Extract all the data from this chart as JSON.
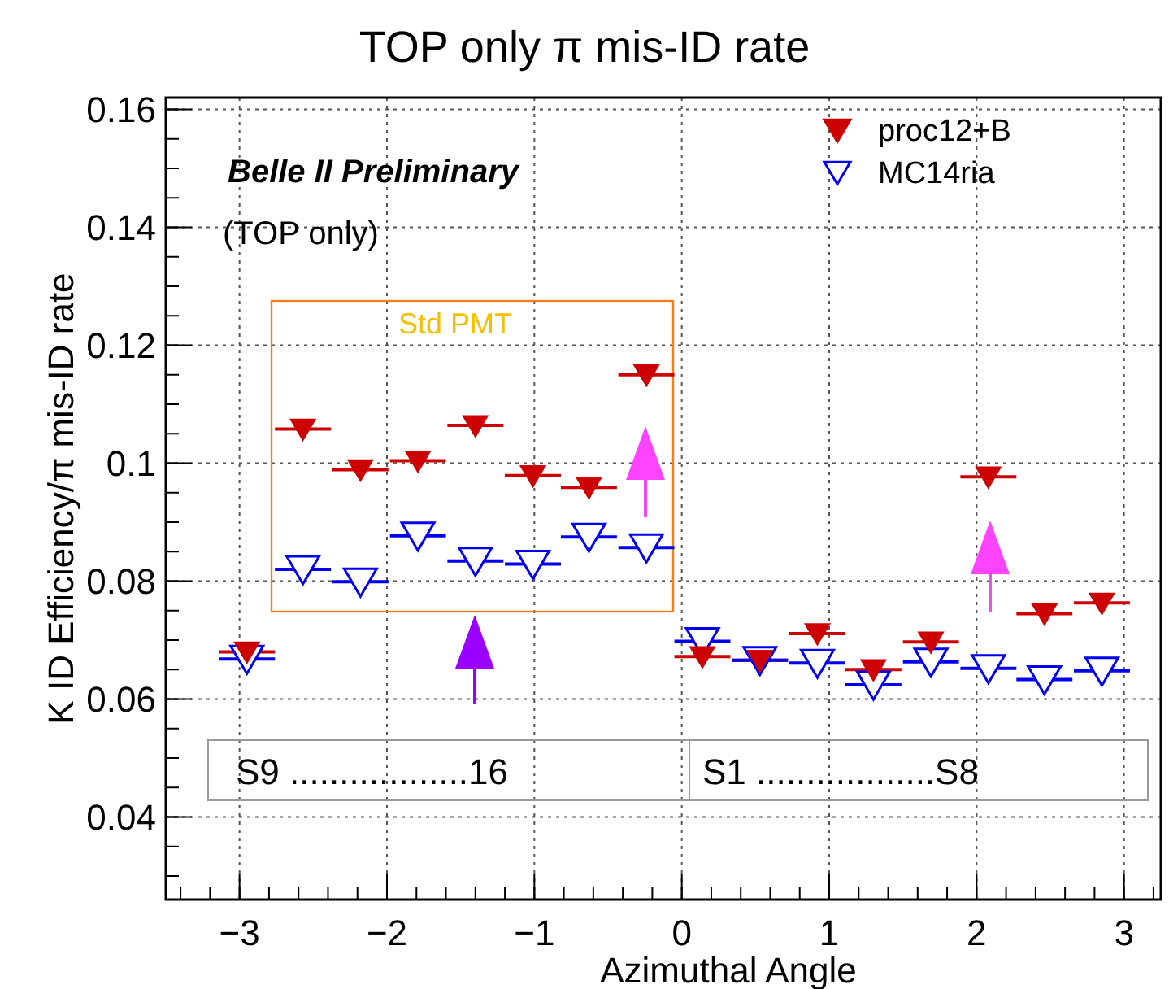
{
  "chart_data": {
    "type": "scatter",
    "title": "TOP only π mis-ID rate",
    "xlabel": "Azimuthal Angle",
    "ylabel": "K ID Efficiency/π mis-ID rate",
    "xlim": [
      -3.5,
      3.25
    ],
    "xticks": [
      -3,
      -2,
      -1,
      0,
      1,
      2,
      3
    ],
    "ylim": [
      0.026,
      0.162
    ],
    "yticks": [
      0.04,
      0.06,
      0.08,
      0.1,
      0.12,
      0.14,
      0.16
    ],
    "grid": true,
    "legend": "top right",
    "marker": "triangle",
    "x": [
      -2.95,
      -2.57,
      -2.18,
      -1.79,
      -1.4,
      -1.01,
      -0.63,
      -0.24,
      0.14,
      0.53,
      0.92,
      1.3,
      1.69,
      2.08,
      2.46,
      2.85
    ],
    "series": [
      {
        "name": "proc12+B",
        "color": "#cc0000",
        "values": [
          0.068,
          0.1058,
          0.0989,
          0.1004,
          0.1064,
          0.0979,
          0.0959,
          0.115,
          0.0672,
          0.0666,
          0.0711,
          0.065,
          0.0697,
          0.0977,
          0.0745,
          0.0763
        ],
        "errors": [
          0.001,
          0.001,
          0.001,
          0.001,
          0.001,
          0.001,
          0.001,
          0.001,
          0.001,
          null,
          0.001,
          0.001,
          0.001,
          0.001,
          0.001,
          0.001
        ],
        "xerrors": [
          0.19,
          0.19,
          0.19,
          0.19,
          0.19,
          0.19,
          0.19,
          0.19,
          0.19,
          0.19,
          0.19,
          0.19,
          0.19,
          0.19,
          0.19,
          0.19
        ]
      },
      {
        "name": "MC14ria",
        "color": "#0000ee",
        "values": [
          0.0668,
          0.082,
          0.0799,
          0.0877,
          0.0834,
          0.0829,
          0.0875,
          0.0857,
          0.0698,
          0.0666,
          0.0661,
          0.0624,
          0.0663,
          0.0652,
          0.0633,
          0.0648
        ],
        "xerrors": [
          0.19,
          0.19,
          0.19,
          0.19,
          0.19,
          0.19,
          0.19,
          0.19,
          0.19,
          0.19,
          0.19,
          0.19,
          0.19,
          0.19,
          0.19,
          0.19
        ]
      }
    ],
    "annotations": [
      "Belle II Preliminary",
      "(TOP only)",
      "Std PMT",
      "S9 ..................16",
      "S1 ..................S8"
    ]
  }
}
